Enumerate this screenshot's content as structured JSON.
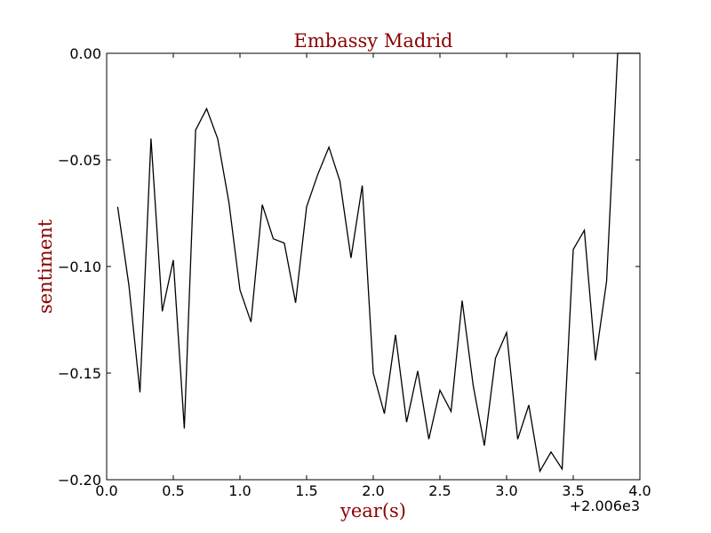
{
  "chart_data": {
    "type": "line",
    "title": "Embassy Madrid",
    "xlabel": "year(s)",
    "ylabel": "sentiment",
    "offset_label": "+2.006e3",
    "xlim": [
      0.0,
      4.0
    ],
    "ylim": [
      -0.2,
      0.0
    ],
    "x_ticks": [
      0.0,
      0.5,
      1.0,
      1.5,
      2.0,
      2.5,
      3.0,
      3.5,
      4.0
    ],
    "x_tick_labels": [
      "0.0",
      "0.5",
      "1.0",
      "1.5",
      "2.0",
      "2.5",
      "3.0",
      "3.5",
      "4.0"
    ],
    "y_ticks": [
      0.0,
      -0.05,
      -0.1,
      -0.15,
      -0.2
    ],
    "y_tick_labels": [
      "0.00",
      "−0.05",
      "−0.10",
      "−0.15",
      "−0.20"
    ],
    "grid": false,
    "colors": {
      "title": "#8b0000",
      "line": "#000000"
    },
    "series": [
      {
        "x": [
          0.083,
          0.167,
          0.25,
          0.333,
          0.417,
          0.5,
          0.583,
          0.667,
          0.75,
          0.833,
          0.917,
          1.0,
          1.083,
          1.167,
          1.25,
          1.333,
          1.417,
          1.5,
          1.583,
          1.667,
          1.75,
          1.833,
          1.917,
          2.0,
          2.083,
          2.167,
          2.25,
          2.333,
          2.417,
          2.5,
          2.583,
          2.667,
          2.75,
          2.833,
          2.917,
          3.0,
          3.083,
          3.167,
          3.25,
          3.333,
          3.417,
          3.5,
          3.583,
          3.667,
          3.75,
          3.833,
          3.917,
          4.0
        ],
        "values": [
          -0.072,
          -0.109,
          -0.159,
          -0.04,
          -0.121,
          -0.097,
          -0.176,
          -0.036,
          -0.026,
          -0.04,
          -0.07,
          -0.111,
          -0.126,
          -0.071,
          -0.087,
          -0.089,
          -0.117,
          -0.072,
          -0.057,
          -0.044,
          -0.06,
          -0.096,
          -0.062,
          -0.15,
          -0.169,
          -0.132,
          -0.173,
          -0.149,
          -0.181,
          -0.158,
          -0.168,
          -0.116,
          -0.156,
          -0.184,
          -0.143,
          -0.131,
          -0.181,
          -0.165,
          -0.196,
          -0.187,
          -0.195,
          -0.092,
          -0.083,
          -0.144,
          -0.107,
          0.0,
          0.0,
          0.0
        ]
      }
    ]
  }
}
